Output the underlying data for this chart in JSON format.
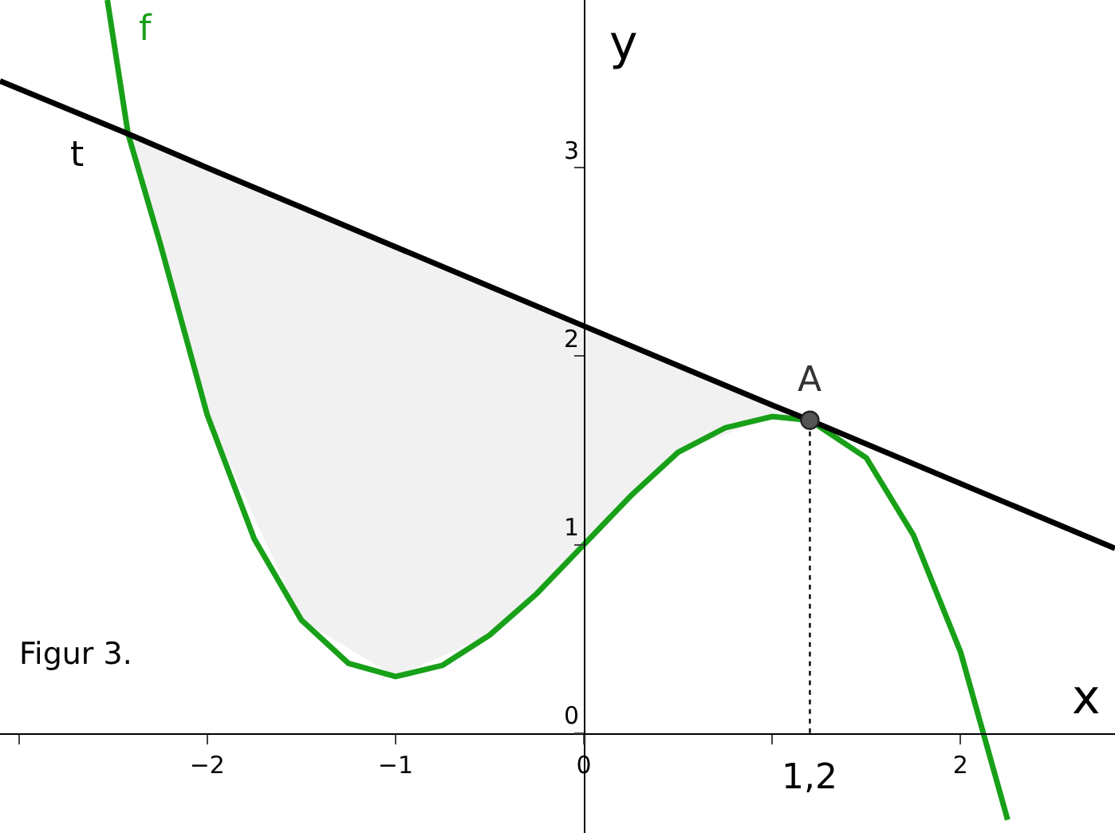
{
  "chart_data": {
    "type": "line",
    "xlabel": "x",
    "ylabel": "y",
    "xlim": [
      -3.1,
      2.82
    ],
    "ylim": [
      -0.53,
      3.89
    ],
    "xticks": [
      {
        "value": -3,
        "label": null
      },
      {
        "value": -2,
        "label": "−2"
      },
      {
        "value": -1,
        "label": "−1"
      },
      {
        "value": 0,
        "label": "0"
      },
      {
        "value": 1,
        "label": null
      },
      {
        "value": 2,
        "label": "2"
      }
    ],
    "yticks": [
      {
        "value": 0,
        "label": "0"
      },
      1,
      2,
      3
    ],
    "grid": false,
    "legend": false,
    "marker": "none",
    "series": [
      {
        "name": "f",
        "color": "#18a018",
        "x": [
          -2.53,
          -2.42,
          -2.25,
          -2,
          -1.75,
          -1.5,
          -1.25,
          -1,
          -0.75,
          -0.5,
          -0.25,
          0,
          0.25,
          0.5,
          0.75,
          1,
          1.2,
          1.5,
          1.75,
          2,
          2.25
        ],
        "values": [
          3.89,
          3.18,
          2.6,
          1.69,
          1.03,
          0.6,
          0.37,
          0.3,
          0.36,
          0.52,
          0.74,
          1,
          1.26,
          1.49,
          1.62,
          1.68,
          1.66,
          1.46,
          1.05,
          0.43,
          -0.46
        ]
      },
      {
        "name": "t",
        "color": "#000000",
        "x": [
          -3.1,
          -2.42,
          -2,
          -1.5,
          -1,
          -0.5,
          0,
          0.5,
          1,
          1.2,
          2.82
        ],
        "values": [
          3.46,
          3.18,
          3.0,
          2.79,
          2.58,
          2.37,
          2.16,
          1.95,
          1.74,
          1.66,
          0.98
        ],
        "lower": [
          null,
          3.18,
          1.69,
          0.6,
          0.3,
          0.52,
          1,
          1.49,
          1.68,
          1.66,
          null
        ],
        "upper": [
          null,
          3.18,
          3.0,
          2.79,
          2.58,
          2.37,
          2.16,
          1.95,
          1.74,
          1.66,
          null
        ]
      },
      {
        "color": "#000000",
        "line_style": "dotted",
        "x": [
          1.2,
          1.2
        ],
        "values": [
          0,
          1.66
        ]
      },
      {
        "type": "scatter",
        "marker": "circle",
        "color": "#555555",
        "x": [
          1.2
        ],
        "values": [
          1.66
        ]
      }
    ],
    "annotations": [
      "Figur 3.",
      {
        "text": "A",
        "x": 1.2,
        "y": 1.66
      },
      {
        "text": "1,2",
        "x": 1.2,
        "y": 0
      }
    ]
  }
}
